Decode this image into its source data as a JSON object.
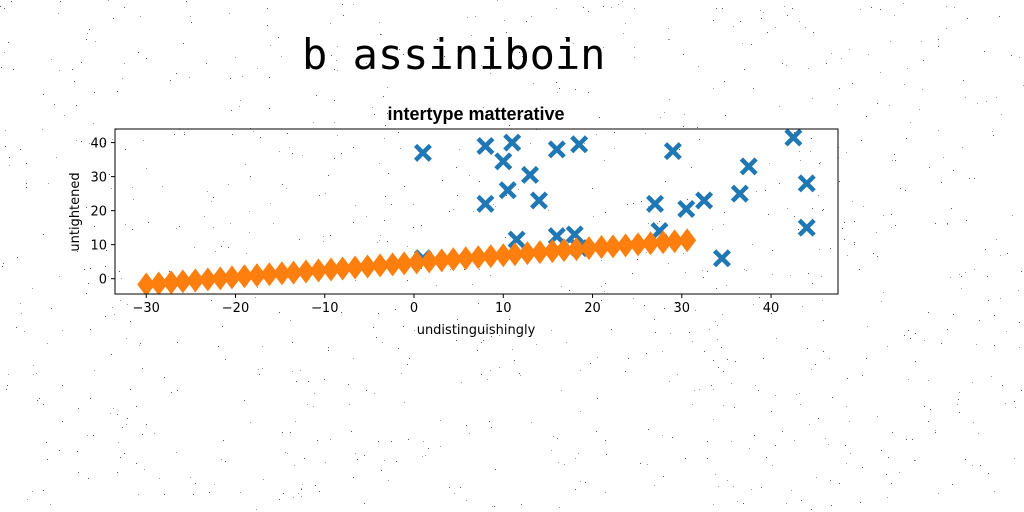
{
  "suptitle": "b assiniboin",
  "chart_data": {
    "type": "scatter",
    "title": "intertype matterative",
    "xlabel": "undistinguishingly",
    "ylabel": "untightened",
    "xlim": [
      -33.5,
      47.5
    ],
    "ylim": [
      -4.5,
      44
    ],
    "xticks": [
      -30,
      -20,
      -10,
      0,
      10,
      20,
      30,
      40
    ],
    "xtick_labels": [
      "−30",
      "−20",
      "−10",
      "0",
      "10",
      "20",
      "30",
      "40"
    ],
    "yticks": [
      0,
      10,
      20,
      30,
      40
    ],
    "ytick_labels": [
      "0",
      "10",
      "20",
      "30",
      "40"
    ],
    "grid": false,
    "series": [
      {
        "marker": "X",
        "color": "#1f77b4",
        "points": [
          [
            1,
            37
          ],
          [
            1,
            6
          ],
          [
            8,
            39
          ],
          [
            8,
            22
          ],
          [
            10,
            34.5
          ],
          [
            10.5,
            26
          ],
          [
            11,
            40
          ],
          [
            11.5,
            11.5
          ],
          [
            13,
            30.5
          ],
          [
            14,
            23
          ],
          [
            16,
            38
          ],
          [
            16,
            12.5
          ],
          [
            18,
            13
          ],
          [
            18.5,
            39.5
          ],
          [
            18.5,
            9
          ],
          [
            27,
            22
          ],
          [
            27.5,
            14
          ],
          [
            29,
            37.5
          ],
          [
            30.5,
            20.5
          ],
          [
            32.5,
            23
          ],
          [
            34.5,
            6
          ],
          [
            36.5,
            25
          ],
          [
            37.5,
            33
          ],
          [
            42.5,
            41.5
          ],
          [
            44,
            28
          ],
          [
            44,
            15
          ]
        ]
      },
      {
        "marker": "D",
        "color": "#ff7f0e",
        "points": [
          [
            -30,
            -1.7
          ],
          [
            -28.6,
            -1.4
          ],
          [
            -27.2,
            -1.1
          ],
          [
            -25.9,
            -0.8
          ],
          [
            -24.5,
            -0.5
          ],
          [
            -23.1,
            -0.2
          ],
          [
            -21.7,
            0.1
          ],
          [
            -20.4,
            0.4
          ],
          [
            -19,
            0.7
          ],
          [
            -17.6,
            1
          ],
          [
            -16.2,
            1.3
          ],
          [
            -14.8,
            1.6
          ],
          [
            -13.5,
            1.8
          ],
          [
            -12.1,
            2.1
          ],
          [
            -10.7,
            2.4
          ],
          [
            -9.3,
            2.7
          ],
          [
            -8,
            3
          ],
          [
            -6.6,
            3.3
          ],
          [
            -5.2,
            3.6
          ],
          [
            -3.8,
            3.9
          ],
          [
            -2.4,
            4.2
          ],
          [
            -1.1,
            4.5
          ],
          [
            0.3,
            4.8
          ],
          [
            1.7,
            5.1
          ],
          [
            3.1,
            5.4
          ],
          [
            4.4,
            5.7
          ],
          [
            5.8,
            6
          ],
          [
            7.2,
            6.3
          ],
          [
            8.6,
            6.6
          ],
          [
            10,
            6.9
          ],
          [
            11.3,
            7.2
          ],
          [
            12.7,
            7.5
          ],
          [
            14.1,
            7.8
          ],
          [
            15.5,
            8.1
          ],
          [
            16.8,
            8.4
          ],
          [
            18.2,
            8.7
          ],
          [
            19.6,
            9
          ],
          [
            21,
            9.3
          ],
          [
            22.3,
            9.5
          ],
          [
            23.7,
            9.8
          ],
          [
            25.1,
            10.1
          ],
          [
            26.5,
            10.4
          ],
          [
            27.9,
            10.7
          ],
          [
            29.2,
            11
          ],
          [
            30.6,
            11.3
          ]
        ]
      }
    ]
  }
}
